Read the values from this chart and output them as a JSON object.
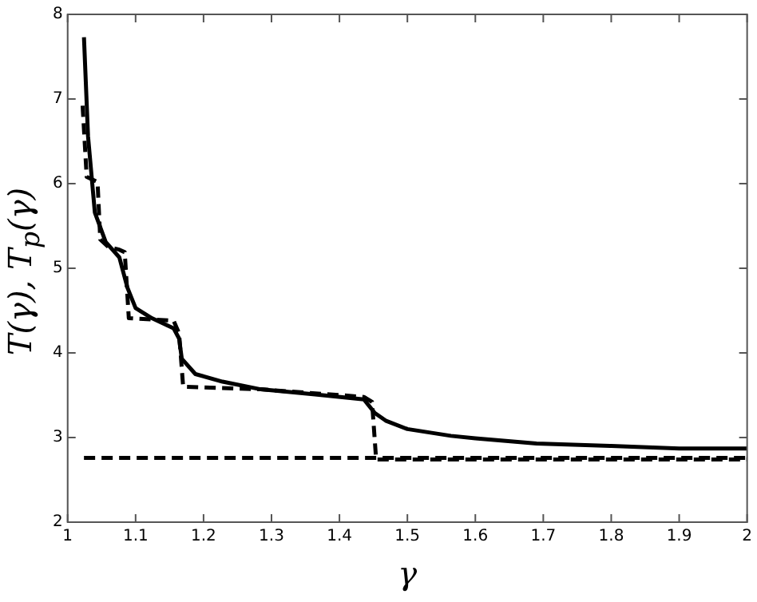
{
  "chart_data": {
    "type": "line",
    "xlabel": "γ",
    "ylabel": "T(γ), T$_{p}$(γ)",
    "xlim": [
      1,
      2
    ],
    "xticks": [
      1,
      1.1,
      1.2,
      1.3,
      1.4,
      1.5,
      1.6,
      1.7,
      1.8,
      1.9,
      2
    ],
    "ylim": [
      2,
      8
    ],
    "yticks": [
      2,
      3,
      4,
      5,
      6,
      7,
      8
    ],
    "grid": false,
    "legend": false,
    "marker": "none",
    "series": [
      {
        "color": "#000000",
        "line_style": "solid",
        "x": [
          1.024,
          1.03,
          1.04,
          1.056,
          1.076,
          1.088,
          1.1,
          1.124,
          1.156,
          1.164,
          1.168,
          1.188,
          1.228,
          1.284,
          1.364,
          1.436,
          1.452,
          1.468,
          1.5,
          1.564,
          1.6,
          1.69,
          1.8,
          1.9,
          2.0
        ],
        "values": [
          7.73,
          6.56,
          5.66,
          5.31,
          5.13,
          4.77,
          4.53,
          4.41,
          4.29,
          4.17,
          3.93,
          3.75,
          3.66,
          3.57,
          3.51,
          3.45,
          3.29,
          3.2,
          3.1,
          3.02,
          2.99,
          2.93,
          2.9,
          2.87,
          2.87
        ]
      },
      {
        "color": "#000000",
        "line_style": "dashed",
        "x": [
          1.022,
          1.028,
          1.044,
          1.048,
          1.06,
          1.076,
          1.084,
          1.09,
          1.156,
          1.164,
          1.17,
          1.284,
          1.436,
          1.448,
          1.454,
          2.0
        ],
        "values": [
          6.92,
          6.08,
          6.02,
          5.34,
          5.25,
          5.22,
          5.19,
          4.41,
          4.38,
          4.23,
          3.6,
          3.57,
          3.48,
          3.42,
          2.74,
          2.74
        ]
      },
      {
        "color": "#000000",
        "line_style": "dashed",
        "x": [
          1.024,
          2.0
        ],
        "values": [
          2.76,
          2.76
        ]
      }
    ]
  }
}
